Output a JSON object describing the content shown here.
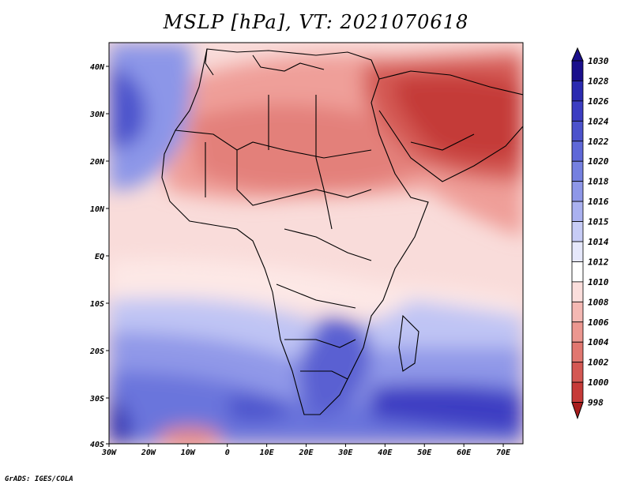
{
  "map": {
    "title": "MSLP [hPa], VT: 2021070618",
    "footer": "GrADS: IGES/COLA",
    "lon_labels": [
      "30W",
      "20W",
      "10W",
      "0",
      "10E",
      "20E",
      "30E",
      "40E",
      "50E",
      "60E",
      "70E"
    ],
    "lat_labels": [
      "40N",
      "30N",
      "20N",
      "10N",
      "EQ",
      "10S",
      "20S",
      "30S",
      "40S"
    ],
    "lon_range": [
      -30,
      75
    ],
    "lat_range": [
      -40,
      45
    ]
  },
  "colorbar": {
    "levels": [
      "1030",
      "1028",
      "1026",
      "1024",
      "1022",
      "1020",
      "1018",
      "1016",
      "1015",
      "1014",
      "1012",
      "1010",
      "1008",
      "1006",
      "1004",
      "1002",
      "1000",
      "998"
    ],
    "colors": [
      "#1a0f8c",
      "#2b2ab0",
      "#3c3dc2",
      "#4c52cc",
      "#5f68d8",
      "#7580e0",
      "#8e97e8",
      "#aab1f0",
      "#c7ccf6",
      "#e6e8fb",
      "#ffffff",
      "#fbdedc",
      "#f4b8b3",
      "#ec9790",
      "#e17770",
      "#d45853",
      "#c63a38",
      "#a81d1d"
    ]
  },
  "legend_colors": {
    "low_pressure": "#cf4a45",
    "high_pressure": "#3c3dc2",
    "neutral": "#ffffff"
  }
}
